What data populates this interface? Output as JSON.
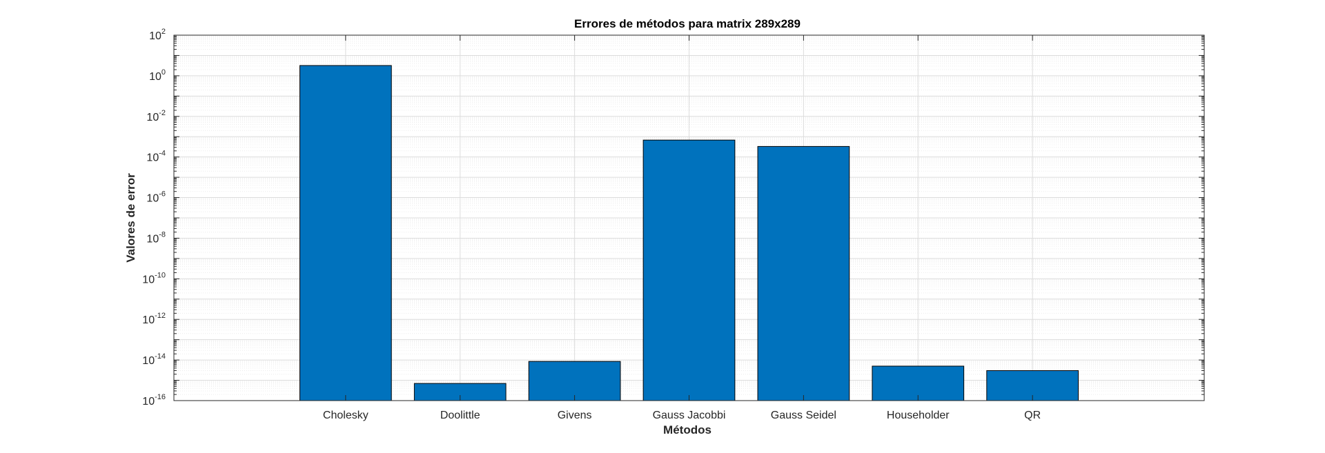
{
  "chart_data": {
    "type": "bar",
    "title": "Errores de métodos para matrix 289x289",
    "xlabel": "Métodos",
    "ylabel": "Valores de error",
    "yscale": "log",
    "ylim": [
      1e-16,
      100
    ],
    "yticks": [
      {
        "base": "10",
        "exp": "2",
        "value": 100
      },
      {
        "base": "10",
        "exp": "0",
        "value": 1
      },
      {
        "base": "10",
        "exp": "-2",
        "value": 0.01
      },
      {
        "base": "10",
        "exp": "-4",
        "value": 0.0001
      },
      {
        "base": "10",
        "exp": "-6",
        "value": 1e-06
      },
      {
        "base": "10",
        "exp": "-8",
        "value": 1e-08
      },
      {
        "base": "10",
        "exp": "-10",
        "value": 1e-10
      },
      {
        "base": "10",
        "exp": "-12",
        "value": 1e-12
      },
      {
        "base": "10",
        "exp": "-14",
        "value": 1e-14
      },
      {
        "base": "10",
        "exp": "-16",
        "value": 1e-16
      }
    ],
    "categories": [
      "Cholesky",
      "Doolittle",
      "Givens",
      "Gauss Jacobbi",
      "Gauss Seidel",
      "Householder",
      "QR"
    ],
    "values": [
      3.2,
      7e-16,
      8.5e-15,
      0.00068,
      0.00033,
      5e-15,
      3e-15
    ],
    "bar_color": "#0072BD",
    "grid": "on (major and minor)"
  }
}
